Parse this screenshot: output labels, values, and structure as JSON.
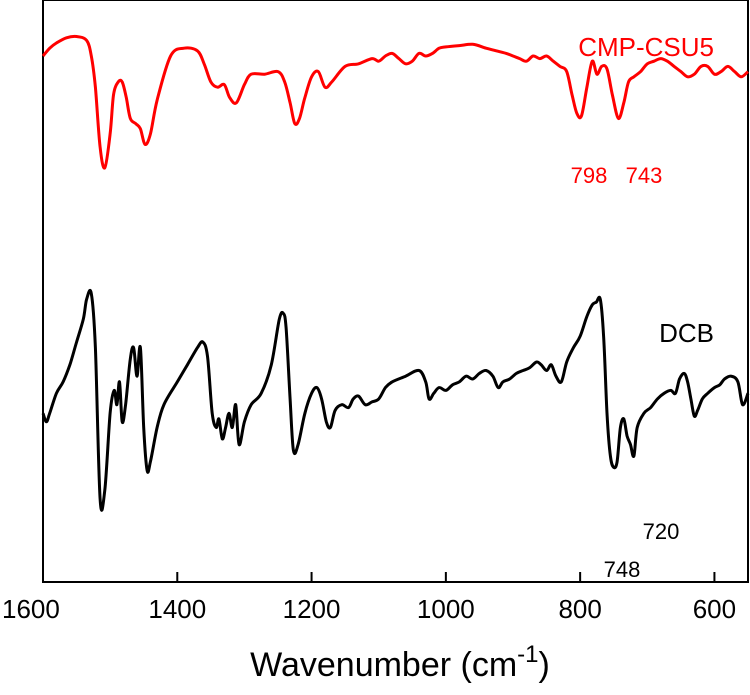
{
  "chart_data": {
    "type": "line",
    "xlabel": "Wavenumber (cm⁻¹)",
    "ylabel": "",
    "xlim": [
      1600,
      550
    ],
    "x_reversed": true,
    "x_ticks": [
      1600,
      1400,
      1200,
      1000,
      800,
      600
    ],
    "y_ticks_shown": false,
    "grid": false,
    "series": [
      {
        "name": "CMP-CSU5",
        "color": "#ff0000",
        "x": [
          1600,
          1590,
          1580,
          1565,
          1550,
          1535,
          1528,
          1522,
          1515,
          1508,
          1500,
          1495,
          1488,
          1482,
          1476,
          1470,
          1462,
          1455,
          1448,
          1440,
          1430,
          1410,
          1390,
          1370,
          1360,
          1350,
          1340,
          1330,
          1322,
          1312,
          1300,
          1290,
          1270,
          1250,
          1240,
          1232,
          1225,
          1218,
          1210,
          1200,
          1190,
          1180,
          1170,
          1150,
          1130,
          1110,
          1100,
          1090,
          1080,
          1070,
          1060,
          1050,
          1040,
          1030,
          1020,
          1010,
          1000,
          980,
          960,
          940,
          925,
          910,
          900,
          890,
          880,
          870,
          860,
          850,
          840,
          830,
          820,
          812,
          805,
          798,
          790,
          782,
          775,
          768,
          760,
          752,
          743,
          735,
          728,
          720,
          710,
          700,
          690,
          680,
          670,
          660,
          650,
          640,
          630,
          620,
          610,
          600,
          590,
          580,
          570,
          560,
          550
        ],
        "y": [
          0.9,
          0.93,
          0.95,
          0.97,
          0.975,
          0.96,
          0.9,
          0.78,
          0.55,
          0.47,
          0.6,
          0.75,
          0.8,
          0.8,
          0.74,
          0.66,
          0.64,
          0.62,
          0.56,
          0.6,
          0.73,
          0.9,
          0.93,
          0.92,
          0.87,
          0.8,
          0.78,
          0.79,
          0.74,
          0.72,
          0.79,
          0.83,
          0.83,
          0.84,
          0.8,
          0.72,
          0.64,
          0.66,
          0.74,
          0.82,
          0.84,
          0.78,
          0.8,
          0.86,
          0.87,
          0.89,
          0.88,
          0.9,
          0.91,
          0.89,
          0.87,
          0.88,
          0.91,
          0.9,
          0.91,
          0.93,
          0.935,
          0.94,
          0.945,
          0.93,
          0.92,
          0.91,
          0.9,
          0.89,
          0.88,
          0.9,
          0.89,
          0.9,
          0.88,
          0.86,
          0.84,
          0.75,
          0.68,
          0.67,
          0.78,
          0.88,
          0.83,
          0.86,
          0.85,
          0.75,
          0.66,
          0.72,
          0.8,
          0.82,
          0.84,
          0.87,
          0.88,
          0.89,
          0.88,
          0.86,
          0.84,
          0.82,
          0.83,
          0.86,
          0.86,
          0.83,
          0.84,
          0.86,
          0.84,
          0.82,
          0.84
        ]
      },
      {
        "name": "DCB",
        "color": "#000000",
        "x": [
          1600,
          1595,
          1590,
          1580,
          1570,
          1560,
          1550,
          1540,
          1535,
          1528,
          1522,
          1515,
          1508,
          1500,
          1494,
          1490,
          1486,
          1482,
          1477,
          1470,
          1465,
          1460,
          1455,
          1450,
          1445,
          1440,
          1430,
          1420,
          1400,
          1385,
          1370,
          1362,
          1355,
          1348,
          1342,
          1338,
          1333,
          1328,
          1323,
          1318,
          1313,
          1308,
          1300,
          1290,
          1275,
          1260,
          1248,
          1242,
          1238,
          1232,
          1227,
          1220,
          1210,
          1200,
          1192,
          1185,
          1178,
          1172,
          1165,
          1155,
          1145,
          1138,
          1130,
          1120,
          1110,
          1100,
          1090,
          1080,
          1060,
          1040,
          1030,
          1025,
          1018,
          1010,
          1000,
          990,
          980,
          970,
          960,
          950,
          940,
          930,
          922,
          915,
          905,
          895,
          885,
          875,
          865,
          858,
          850,
          843,
          836,
          828,
          820,
          810,
          800,
          790,
          782,
          776,
          770,
          765,
          760,
          755,
          750,
          745,
          740,
          735,
          730,
          725,
          720,
          715,
          705,
          695,
          685,
          675,
          665,
          658,
          652,
          645,
          640,
          635,
          630,
          625,
          618,
          610,
          600,
          592,
          585,
          575,
          565,
          558,
          550
        ],
        "y": [
          0.55,
          0.52,
          0.55,
          0.62,
          0.66,
          0.72,
          0.8,
          0.88,
          0.95,
          0.97,
          0.78,
          0.25,
          0.28,
          0.55,
          0.63,
          0.58,
          0.66,
          0.52,
          0.58,
          0.74,
          0.78,
          0.68,
          0.78,
          0.5,
          0.35,
          0.38,
          0.5,
          0.58,
          0.66,
          0.72,
          0.78,
          0.8,
          0.75,
          0.55,
          0.5,
          0.53,
          0.46,
          0.5,
          0.55,
          0.5,
          0.58,
          0.44,
          0.52,
          0.58,
          0.62,
          0.72,
          0.88,
          0.9,
          0.85,
          0.6,
          0.42,
          0.44,
          0.55,
          0.62,
          0.64,
          0.6,
          0.52,
          0.5,
          0.56,
          0.58,
          0.57,
          0.6,
          0.61,
          0.58,
          0.59,
          0.6,
          0.64,
          0.66,
          0.68,
          0.7,
          0.66,
          0.6,
          0.62,
          0.64,
          0.63,
          0.65,
          0.66,
          0.68,
          0.67,
          0.69,
          0.7,
          0.68,
          0.64,
          0.66,
          0.67,
          0.69,
          0.7,
          0.71,
          0.73,
          0.72,
          0.7,
          0.72,
          0.68,
          0.66,
          0.73,
          0.78,
          0.82,
          0.89,
          0.93,
          0.94,
          0.95,
          0.82,
          0.55,
          0.4,
          0.36,
          0.38,
          0.5,
          0.53,
          0.47,
          0.44,
          0.4,
          0.5,
          0.55,
          0.57,
          0.6,
          0.62,
          0.63,
          0.62,
          0.67,
          0.69,
          0.66,
          0.6,
          0.54,
          0.56,
          0.6,
          0.62,
          0.64,
          0.65,
          0.67,
          0.68,
          0.66,
          0.58,
          0.62
        ]
      }
    ],
    "annotations": [
      {
        "text": "CMP-CSU5",
        "series": "CMP-CSU5",
        "color": "#ff0000"
      },
      {
        "text": "DCB",
        "series": "DCB",
        "color": "#000000"
      },
      {
        "text": "798",
        "series": "CMP-CSU5",
        "x": 798,
        "color": "#ff0000"
      },
      {
        "text": "743",
        "series": "CMP-CSU5",
        "x": 743,
        "color": "#ff0000"
      },
      {
        "text": "748",
        "series": "DCB",
        "x": 748,
        "color": "#000000"
      },
      {
        "text": "720",
        "series": "DCB",
        "x": 720,
        "color": "#000000"
      }
    ]
  }
}
